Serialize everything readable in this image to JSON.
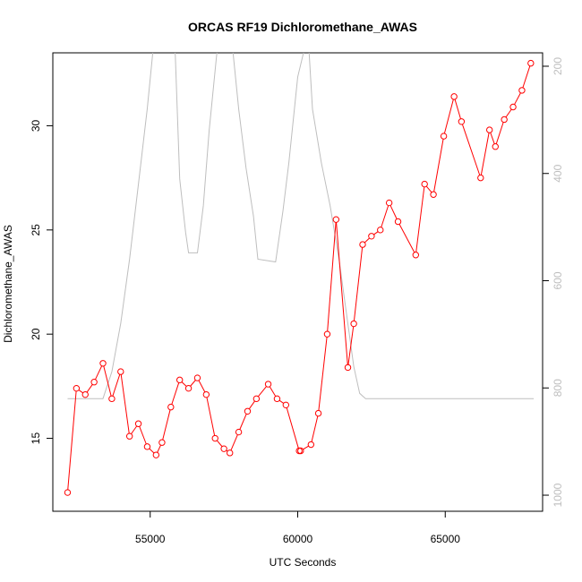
{
  "chart_data": {
    "type": "line",
    "title": "ORCAS RF19 Dichloromethane_AWAS",
    "xlabel": "UTC Seconds",
    "ylabel": "Dichloromethane_AWAS",
    "xlim": [
      51700,
      68300
    ],
    "ylim": [
      11.5,
      33.5
    ],
    "y2lim": [
      1030,
      175
    ],
    "y2_reversed": true,
    "x_ticks": [
      55000,
      60000,
      65000
    ],
    "y_ticks": [
      15,
      20,
      25,
      30
    ],
    "y2_ticks": [
      200,
      400,
      600,
      800,
      1000
    ],
    "grid": false,
    "colors": {
      "primary": "#ff0000",
      "secondary": "#bebebe"
    },
    "series": [
      {
        "axis": "left",
        "marker": "open-circle",
        "x": [
          52200,
          52500,
          52800,
          53100,
          53400,
          53700,
          54000,
          54300,
          54600,
          54900,
          55200,
          55400,
          55700,
          56000,
          56300,
          56600,
          56900,
          57200,
          57500,
          57700,
          58000,
          58300,
          58600,
          59000,
          59300,
          59600,
          60050,
          60100,
          60450,
          60700,
          61000,
          61300,
          61700,
          61900,
          62200,
          62500,
          62800,
          63100,
          63400,
          64000,
          64300,
          64600,
          64950,
          65300,
          65550,
          66200,
          66500,
          66700,
          67000,
          67300,
          67600,
          67900
        ],
        "y": [
          12.4,
          17.4,
          17.1,
          17.7,
          18.6,
          16.9,
          18.2,
          15.1,
          15.7,
          14.6,
          14.2,
          14.8,
          16.5,
          17.8,
          17.4,
          17.9,
          17.1,
          15.0,
          14.5,
          14.3,
          15.3,
          16.3,
          16.9,
          17.6,
          16.9,
          16.6,
          14.4,
          14.4,
          14.7,
          16.2,
          20.0,
          25.5,
          18.4,
          20.5,
          24.3,
          24.7,
          25.0,
          26.3,
          25.4,
          23.8,
          27.2,
          26.7,
          29.5,
          31.4,
          30.2,
          27.5,
          29.8,
          29.0,
          30.3,
          30.9,
          31.7,
          33.0
        ]
      },
      {
        "axis": "right",
        "marker": "none",
        "x": [
          52200,
          53400,
          53700,
          54000,
          54300,
          54600,
          54900,
          55150,
          55400,
          55600,
          55850,
          56000,
          56200,
          56300,
          56600,
          56800,
          57000,
          57250,
          57400,
          57600,
          57800,
          58000,
          58250,
          58500,
          58650,
          59250,
          59500,
          59700,
          60000,
          60350,
          60500,
          60800,
          61100,
          61400,
          61700,
          61900,
          62100,
          62300,
          68000
        ],
        "y": [
          820,
          820,
          770,
          680,
          560,
          420,
          280,
          140,
          10,
          30,
          180,
          410,
          510,
          548,
          548,
          460,
          320,
          180,
          120,
          20,
          170,
          280,
          390,
          480,
          560,
          565,
          470,
          380,
          220,
          140,
          280,
          380,
          460,
          560,
          680,
          760,
          810,
          820,
          820
        ]
      }
    ]
  }
}
